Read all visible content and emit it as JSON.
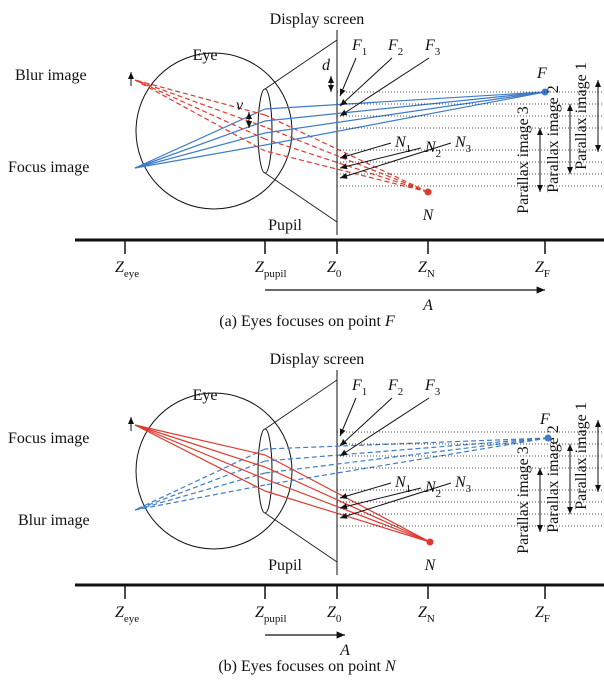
{
  "panels": [
    {
      "screen_label": "Display screen",
      "eye_label": "Eye",
      "upper_image_label": "Blur image",
      "lower_image_label": "Focus image",
      "pupil_label": "Pupil",
      "far_point": "F",
      "near_point": "N",
      "far_labels": [
        {
          "main": "F",
          "sub": "1"
        },
        {
          "main": "F",
          "sub": "2"
        },
        {
          "main": "F",
          "sub": "3"
        }
      ],
      "near_labels": [
        {
          "main": "N",
          "sub": "1"
        },
        {
          "main": "N",
          "sub": "2"
        },
        {
          "main": "N",
          "sub": "3"
        }
      ],
      "v_label": "v",
      "d_label": "d",
      "parallax_labels": [
        "Parallax image 3",
        "Parallax image 2",
        "Parallax image 1"
      ],
      "axis_labels": [
        {
          "main": "Z",
          "sub": "eye"
        },
        {
          "main": "Z",
          "sub": "pupil"
        },
        {
          "main": "Z",
          "sub": "0"
        },
        {
          "main": "Z",
          "sub": "N"
        },
        {
          "main": "Z",
          "sub": "F"
        }
      ],
      "a_label": "A",
      "caption": {
        "text": "(a) Eyes focuses on point ",
        "point": "F"
      }
    },
    {
      "screen_label": "Display screen",
      "eye_label": "Eye",
      "upper_image_label": "Focus image",
      "lower_image_label": "Blur image",
      "pupil_label": "Pupil",
      "far_point": "F",
      "near_point": "N",
      "far_labels": [
        {
          "main": "F",
          "sub": "1"
        },
        {
          "main": "F",
          "sub": "2"
        },
        {
          "main": "F",
          "sub": "3"
        }
      ],
      "near_labels": [
        {
          "main": "N",
          "sub": "1"
        },
        {
          "main": "N",
          "sub": "2"
        },
        {
          "main": "N",
          "sub": "3"
        }
      ],
      "parallax_labels": [
        "Parallax image 3",
        "Parallax image 2",
        "Parallax image 1"
      ],
      "axis_labels": [
        {
          "main": "Z",
          "sub": "eye"
        },
        {
          "main": "Z",
          "sub": "pupil"
        },
        {
          "main": "Z",
          "sub": "0"
        },
        {
          "main": "Z",
          "sub": "N"
        },
        {
          "main": "Z",
          "sub": "F"
        }
      ],
      "a_label": "A",
      "caption": {
        "text": "(b) Eyes focuses on point ",
        "point": "N"
      }
    }
  ]
}
